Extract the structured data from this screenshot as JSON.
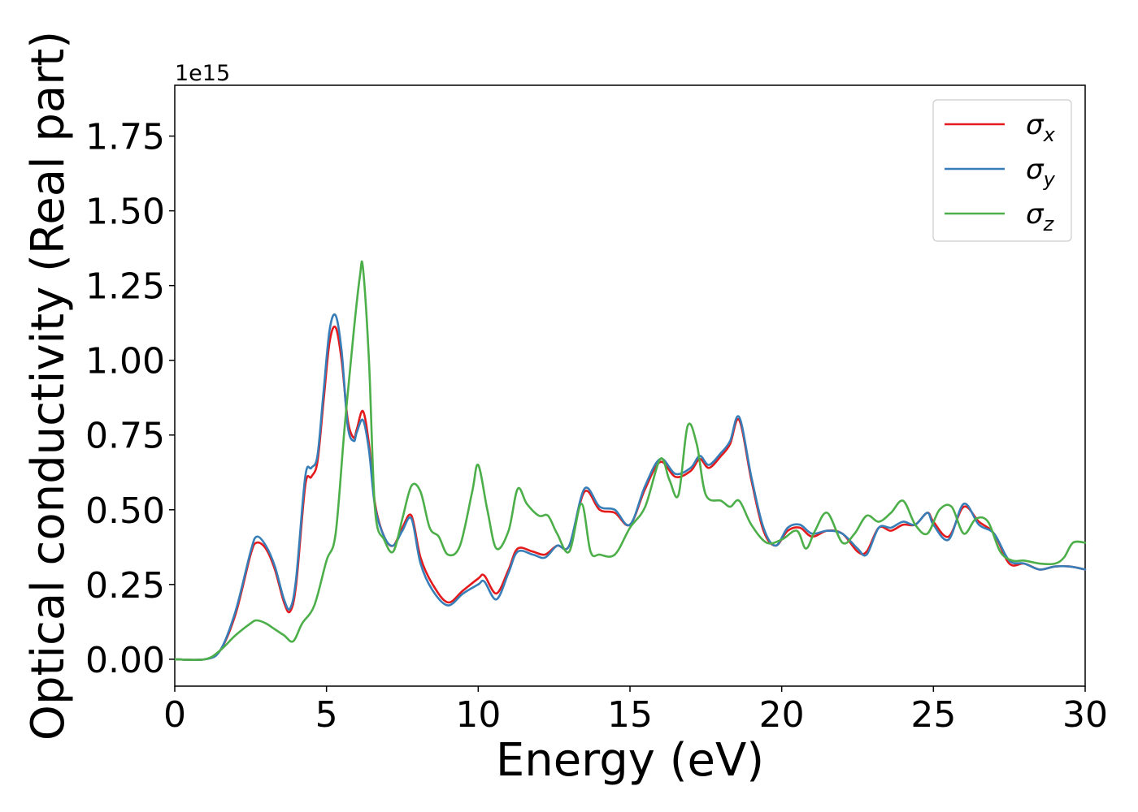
{
  "chart_data": {
    "type": "line",
    "title": "",
    "xlabel": "Energy (eV)",
    "ylabel": "Optical conductivity (Real part)",
    "y_offset_label": "1e15",
    "xlim": [
      0,
      30
    ],
    "ylim": [
      -0.09,
      1.92
    ],
    "xticks": [
      0,
      5,
      10,
      15,
      20,
      25,
      30
    ],
    "xtick_labels": [
      "0",
      "5",
      "10",
      "15",
      "20",
      "25",
      "30"
    ],
    "yticks": [
      0.0,
      0.25,
      0.5,
      0.75,
      1.0,
      1.25,
      1.5,
      1.75
    ],
    "ytick_labels": [
      "0.00",
      "0.25",
      "0.50",
      "0.75",
      "1.00",
      "1.25",
      "1.50",
      "1.75"
    ],
    "grid": false,
    "legend_position": "upper right",
    "series": [
      {
        "name": "σx",
        "legend_base": "σ",
        "legend_sub": "x",
        "color": "#e41a1c",
        "x": [
          0,
          1.0,
          1.5,
          2.0,
          2.5,
          2.7,
          3.0,
          3.3,
          3.6,
          3.8,
          4.0,
          4.3,
          4.5,
          4.7,
          4.9,
          5.1,
          5.3,
          5.5,
          5.7,
          5.9,
          6.0,
          6.2,
          6.4,
          6.6,
          6.9,
          7.2,
          7.5,
          7.8,
          8.1,
          8.5,
          9.0,
          9.5,
          10.0,
          10.2,
          10.6,
          11.0,
          11.3,
          11.8,
          12.2,
          12.6,
          13.0,
          13.5,
          14.0,
          14.5,
          15.0,
          15.5,
          16.0,
          16.5,
          17.0,
          17.3,
          17.6,
          18.0,
          18.3,
          18.6,
          19.0,
          19.4,
          19.8,
          20.2,
          20.6,
          21.0,
          21.5,
          22.0,
          22.5,
          22.8,
          23.2,
          23.6,
          24.0,
          24.4,
          24.8,
          25.0,
          25.5,
          26.0,
          26.5,
          27.0,
          27.5,
          28.0,
          28.5,
          29.0,
          29.5,
          30.0
        ],
        "values": [
          0,
          0.0,
          0.03,
          0.15,
          0.35,
          0.39,
          0.37,
          0.3,
          0.19,
          0.16,
          0.25,
          0.58,
          0.61,
          0.66,
          0.86,
          1.06,
          1.11,
          1.0,
          0.8,
          0.74,
          0.77,
          0.83,
          0.72,
          0.52,
          0.41,
          0.38,
          0.44,
          0.48,
          0.34,
          0.25,
          0.19,
          0.23,
          0.27,
          0.28,
          0.22,
          0.3,
          0.37,
          0.36,
          0.35,
          0.38,
          0.38,
          0.56,
          0.5,
          0.49,
          0.45,
          0.57,
          0.66,
          0.61,
          0.63,
          0.67,
          0.64,
          0.68,
          0.72,
          0.8,
          0.6,
          0.43,
          0.38,
          0.43,
          0.44,
          0.41,
          0.43,
          0.42,
          0.36,
          0.36,
          0.44,
          0.43,
          0.45,
          0.45,
          0.49,
          0.46,
          0.41,
          0.51,
          0.46,
          0.42,
          0.32,
          0.32,
          0.3,
          0.31,
          0.31,
          0.3
        ]
      },
      {
        "name": "σy",
        "legend_base": "σ",
        "legend_sub": "y",
        "color": "#377eb8",
        "x": [
          0,
          1.0,
          1.5,
          2.0,
          2.5,
          2.7,
          3.0,
          3.3,
          3.6,
          3.8,
          4.0,
          4.3,
          4.5,
          4.7,
          4.9,
          5.1,
          5.3,
          5.5,
          5.7,
          5.9,
          6.0,
          6.2,
          6.4,
          6.6,
          6.9,
          7.2,
          7.5,
          7.8,
          8.1,
          8.5,
          9.0,
          9.5,
          10.0,
          10.2,
          10.6,
          11.0,
          11.3,
          11.8,
          12.2,
          12.6,
          13.0,
          13.5,
          14.0,
          14.5,
          15.0,
          15.5,
          16.0,
          16.5,
          17.0,
          17.3,
          17.6,
          18.0,
          18.3,
          18.6,
          19.0,
          19.4,
          19.8,
          20.2,
          20.6,
          21.0,
          21.5,
          22.0,
          22.5,
          22.8,
          23.2,
          23.6,
          24.0,
          24.4,
          24.8,
          25.0,
          25.5,
          26.0,
          26.5,
          27.0,
          27.5,
          28.0,
          28.5,
          29.0,
          29.5,
          30.0
        ],
        "values": [
          0,
          0.0,
          0.03,
          0.16,
          0.36,
          0.41,
          0.38,
          0.31,
          0.2,
          0.17,
          0.27,
          0.61,
          0.64,
          0.68,
          0.89,
          1.1,
          1.15,
          1.03,
          0.78,
          0.73,
          0.76,
          0.8,
          0.7,
          0.51,
          0.41,
          0.38,
          0.43,
          0.47,
          0.32,
          0.23,
          0.18,
          0.22,
          0.25,
          0.26,
          0.2,
          0.29,
          0.36,
          0.35,
          0.34,
          0.38,
          0.38,
          0.57,
          0.51,
          0.5,
          0.45,
          0.58,
          0.67,
          0.62,
          0.64,
          0.68,
          0.65,
          0.69,
          0.73,
          0.81,
          0.61,
          0.44,
          0.38,
          0.44,
          0.45,
          0.42,
          0.43,
          0.42,
          0.37,
          0.35,
          0.44,
          0.44,
          0.46,
          0.45,
          0.49,
          0.45,
          0.4,
          0.52,
          0.45,
          0.42,
          0.33,
          0.32,
          0.3,
          0.31,
          0.31,
          0.3
        ]
      },
      {
        "name": "σz",
        "legend_base": "σ",
        "legend_sub": "z",
        "color": "#4daf4a",
        "x": [
          0,
          1.0,
          1.5,
          2.0,
          2.5,
          2.7,
          3.0,
          3.3,
          3.6,
          3.9,
          4.2,
          4.6,
          5.0,
          5.3,
          5.6,
          5.9,
          6.1,
          6.2,
          6.4,
          6.6,
          6.9,
          7.2,
          7.5,
          7.8,
          8.1,
          8.4,
          8.7,
          9.0,
          9.4,
          9.8,
          10.0,
          10.3,
          10.6,
          11.0,
          11.3,
          11.6,
          12.0,
          12.3,
          12.6,
          13.0,
          13.4,
          13.7,
          14.0,
          14.5,
          15.0,
          15.5,
          16.0,
          16.3,
          16.6,
          16.9,
          17.2,
          17.5,
          18.0,
          18.3,
          18.6,
          19.0,
          19.5,
          20.0,
          20.5,
          20.8,
          21.1,
          21.5,
          22.0,
          22.4,
          22.8,
          23.2,
          23.6,
          24.0,
          24.4,
          24.8,
          25.2,
          25.6,
          26.0,
          26.4,
          26.8,
          27.2,
          27.6,
          28.0,
          28.5,
          29.0,
          29.3,
          29.6,
          30.0
        ],
        "values": [
          0,
          0.0,
          0.03,
          0.08,
          0.12,
          0.13,
          0.12,
          0.1,
          0.08,
          0.06,
          0.12,
          0.18,
          0.33,
          0.42,
          0.78,
          1.1,
          1.28,
          1.31,
          1.0,
          0.5,
          0.4,
          0.36,
          0.47,
          0.58,
          0.56,
          0.44,
          0.41,
          0.35,
          0.38,
          0.56,
          0.65,
          0.5,
          0.37,
          0.43,
          0.57,
          0.52,
          0.48,
          0.48,
          0.42,
          0.36,
          0.52,
          0.36,
          0.35,
          0.35,
          0.44,
          0.51,
          0.67,
          0.6,
          0.55,
          0.78,
          0.72,
          0.55,
          0.53,
          0.51,
          0.53,
          0.45,
          0.39,
          0.4,
          0.43,
          0.37,
          0.43,
          0.49,
          0.39,
          0.42,
          0.48,
          0.46,
          0.49,
          0.53,
          0.45,
          0.42,
          0.5,
          0.51,
          0.42,
          0.47,
          0.46,
          0.36,
          0.33,
          0.33,
          0.32,
          0.32,
          0.34,
          0.39,
          0.39
        ]
      }
    ]
  }
}
